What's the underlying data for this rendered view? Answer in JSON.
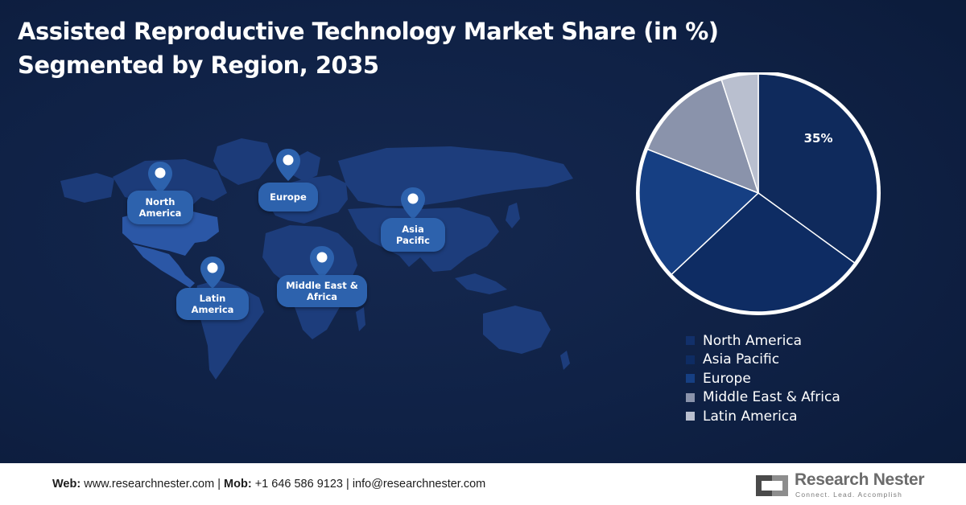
{
  "header": {
    "title_line1": "Assisted Reproductive Technology Market Share (in %)",
    "title_line2": "Segmented by Region, 2035"
  },
  "map": {
    "pins": [
      {
        "label": "North America"
      },
      {
        "label": "Europe"
      },
      {
        "label": "Asia Pacific"
      },
      {
        "label": "Middle East & Africa"
      },
      {
        "label": "Latin America"
      }
    ]
  },
  "chart_data": {
    "type": "pie",
    "title": "Assisted Reproductive Technology Market Share (in %) Segmented by Region, 2035",
    "slices": [
      {
        "label": "North America",
        "value": 35,
        "color": "#0f2a5c",
        "data_label": "35%"
      },
      {
        "label": "Asia Pacific",
        "value": 28,
        "color": "#0e2c63"
      },
      {
        "label": "Europe",
        "value": 18,
        "color": "#163f83"
      },
      {
        "label": "Middle East & Africa",
        "value": 14,
        "color": "#8a93ab"
      },
      {
        "label": "Latin America",
        "value": 5,
        "color": "#b9bfcf"
      }
    ],
    "legend_position": "bottom-right"
  },
  "footer": {
    "web_label": "Web:",
    "web_value": "www.researchnester.com",
    "mob_label": "Mob:",
    "mob_value": "+1 646 586 9123",
    "email_value": "info@researchnester.com",
    "separator": "|",
    "brand_name": "Research Nester",
    "brand_tagline": "Connect. Lead. Accomplish"
  }
}
